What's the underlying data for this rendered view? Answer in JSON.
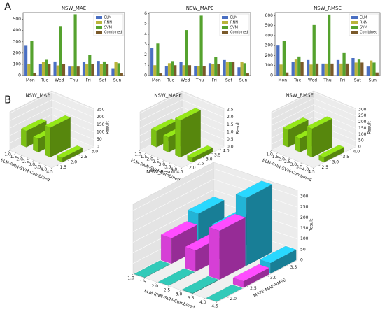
{
  "panels": [
    "A",
    "B"
  ],
  "chart_data": [
    {
      "type": "bar",
      "title": "NSW_MAE",
      "categories": [
        "Mon",
        "Tue",
        "Wed",
        "Thu",
        "Fri",
        "Sat",
        "Sun"
      ],
      "series": [
        {
          "name": "ELM",
          "color": "#4a6fc2",
          "values": [
            265,
            100,
            125,
            80,
            120,
            130,
            65
          ]
        },
        {
          "name": "RNN",
          "color": "#b9b43a",
          "values": [
            100,
            120,
            90,
            80,
            100,
            100,
            120
          ]
        },
        {
          "name": "SVM",
          "color": "#55a22e",
          "values": [
            305,
            140,
            440,
            545,
            185,
            125,
            110
          ]
        },
        {
          "name": "Combined",
          "color": "#7a5a2a",
          "values": [
            25,
            100,
            100,
            80,
            100,
            100,
            20
          ]
        }
      ],
      "ylim": [
        0,
        560
      ],
      "yticks": [
        0,
        100,
        200,
        300,
        400,
        500
      ],
      "legend": "upper right"
    },
    {
      "type": "bar",
      "title": "NSW_MAPE",
      "categories": [
        "Mon",
        "Tue",
        "Wed",
        "Thu",
        "Fri",
        "Sat",
        "Sun"
      ],
      "series": [
        {
          "name": "ELM",
          "color": "#4a6fc2",
          "values": [
            2.7,
            0.9,
            1.3,
            0.9,
            1.2,
            1.5,
            0.8
          ]
        },
        {
          "name": "RNN",
          "color": "#b9b43a",
          "values": [
            1.0,
            1.2,
            1.0,
            0.9,
            1.1,
            1.3,
            1.3
          ]
        },
        {
          "name": "SVM",
          "color": "#55a22e",
          "values": [
            3.1,
            1.4,
            4.4,
            5.8,
            1.8,
            1.3,
            1.2
          ]
        },
        {
          "name": "Combined",
          "color": "#7a5a2a",
          "values": [
            0.2,
            1.0,
            1.0,
            0.9,
            1.1,
            1.3,
            0.2
          ]
        }
      ],
      "ylim": [
        0,
        6.1
      ],
      "yticks": [
        0,
        1,
        2,
        3,
        4,
        5,
        6
      ],
      "legend": "upper right"
    },
    {
      "type": "bar",
      "title": "NSW_RMSE",
      "categories": [
        "Mon",
        "Tue",
        "Wed",
        "Thu",
        "Fri",
        "Sat",
        "Sun"
      ],
      "series": [
        {
          "name": "ELM",
          "color": "#4a6fc2",
          "values": [
            300,
            140,
            155,
            120,
            155,
            175,
            90
          ]
        },
        {
          "name": "RNN",
          "color": "#b9b43a",
          "values": [
            110,
            160,
            110,
            120,
            120,
            130,
            150
          ]
        },
        {
          "name": "SVM",
          "color": "#55a22e",
          "values": [
            345,
            190,
            505,
            610,
            225,
            160,
            130
          ]
        },
        {
          "name": "Combined",
          "color": "#7a5a2a",
          "values": [
            30,
            140,
            120,
            120,
            120,
            130,
            30
          ]
        }
      ],
      "ylim": [
        0,
        630
      ],
      "yticks": [
        0,
        100,
        200,
        300,
        400,
        500,
        600
      ],
      "legend": "upper right"
    },
    {
      "type": "bar3d",
      "title": "NSW_MAE",
      "x_label": "ELM-RNN-SVM-Combined",
      "z_label": "Result",
      "x": [
        1.25,
        2.25,
        3.25,
        4.25
      ],
      "values": [
        110,
        90,
        200,
        30
      ],
      "color": "#7cc113",
      "xlim": [
        1,
        4.5
      ],
      "xticks": [
        {
          "value": 1,
          "label": "1.0"
        },
        1.5,
        {
          "value": 2,
          "label": "2.0"
        },
        2.5,
        {
          "value": 3,
          "label": "3.0"
        },
        3.5,
        {
          "value": 4,
          "label": "4.0"
        },
        4.5
      ],
      "ylim": [
        1.25,
        3.25
      ],
      "yticks": [
        1.5,
        {
          "value": 2,
          "label": "2.0"
        },
        2.5,
        {
          "value": 3,
          "label": "3.0"
        }
      ],
      "zlim": [
        0,
        260
      ],
      "zticks": [
        0,
        50,
        100,
        150,
        200,
        250
      ]
    },
    {
      "type": "bar3d",
      "title": "NSW_MAPE",
      "x_label": "ELM-RNN-SVM-Combined",
      "z_label": "Result",
      "x": [
        1.25,
        2.25,
        3.25,
        4.25
      ],
      "values": [
        1.1,
        1.0,
        2.5,
        0.3
      ],
      "color": "#7cc113",
      "xlim": [
        1,
        4.5
      ],
      "xticks": [
        {
          "value": 1,
          "label": "1.0"
        },
        1.5,
        {
          "value": 2,
          "label": "2.0"
        },
        2.5,
        {
          "value": 3,
          "label": "3.0"
        },
        3.5,
        {
          "value": 4,
          "label": "4.0"
        },
        4.5
      ],
      "ylim": [
        1.75,
        4.25
      ],
      "yticks": [
        {
          "value": 2,
          "label": "2.0"
        },
        2.5,
        {
          "value": 3,
          "label": "3.0"
        },
        3.5,
        {
          "value": 4,
          "label": "4.0"
        }
      ],
      "zlim": [
        0,
        2.6
      ],
      "zticks": [
        {
          "value": 0,
          "label": "0.0"
        },
        0.5,
        {
          "value": 1,
          "label": "1.0"
        },
        1.5,
        {
          "value": 2,
          "label": "2.0"
        },
        2.5
      ]
    },
    {
      "type": "bar3d",
      "title": "NSW_RMSE",
      "x_label": "ELM-RNN-SVM-Combined",
      "z_label": "Result",
      "x": [
        1.25,
        2.25,
        3.25,
        4.25
      ],
      "values": [
        140,
        110,
        230,
        40
      ],
      "color": "#7cc113",
      "xlim": [
        1,
        4.5
      ],
      "xticks": [
        {
          "value": 1,
          "label": "1.0"
        },
        1.5,
        {
          "value": 2,
          "label": "2.0"
        },
        2.5,
        {
          "value": 3,
          "label": "3.0"
        },
        3.5,
        {
          "value": 4,
          "label": "4.0"
        },
        4.5
      ],
      "ylim": [
        2.25,
        4.25
      ],
      "yticks": [
        2.5,
        {
          "value": 3,
          "label": "3.0"
        },
        3.5,
        {
          "value": 4,
          "label": "4.0"
        }
      ],
      "zlim": [
        0,
        310
      ],
      "zticks": [
        0,
        50,
        100,
        150,
        200,
        250,
        300
      ]
    },
    {
      "type": "bar3d",
      "title": "NSW_Result",
      "x_label": "ELM-RNN-SVM-Combined",
      "y_label": "MAPE-MAE-RMSE",
      "z_label": "Result",
      "x": [
        1.25,
        2.25,
        3.25,
        4.25
      ],
      "series": [
        {
          "color": "#2aa89a",
          "values": [
            1.1,
            1.0,
            2.5,
            0.3
          ]
        },
        {
          "color": "#d63fd6",
          "values": [
            120,
            100,
            230,
            30
          ]
        },
        {
          "color": "#22b4d6",
          "values": [
            170,
            140,
            320,
            50
          ]
        }
      ],
      "xlim": [
        1,
        4.5
      ],
      "xticks": [
        {
          "value": 1,
          "label": "1.0"
        },
        1.5,
        {
          "value": 2,
          "label": "2.0"
        },
        2.5,
        {
          "value": 3,
          "label": "3.0"
        },
        3.5,
        {
          "value": 4,
          "label": "4.0"
        },
        4.5
      ],
      "ylim": [
        1.75,
        3.75
      ],
      "yticks": [
        {
          "value": 2,
          "label": "2.0"
        },
        2.5,
        {
          "value": 3,
          "label": "3.0"
        },
        3.5
      ],
      "zlim": [
        0,
        330
      ],
      "zticks": [
        0,
        50,
        100,
        150,
        200,
        250,
        300
      ]
    }
  ]
}
